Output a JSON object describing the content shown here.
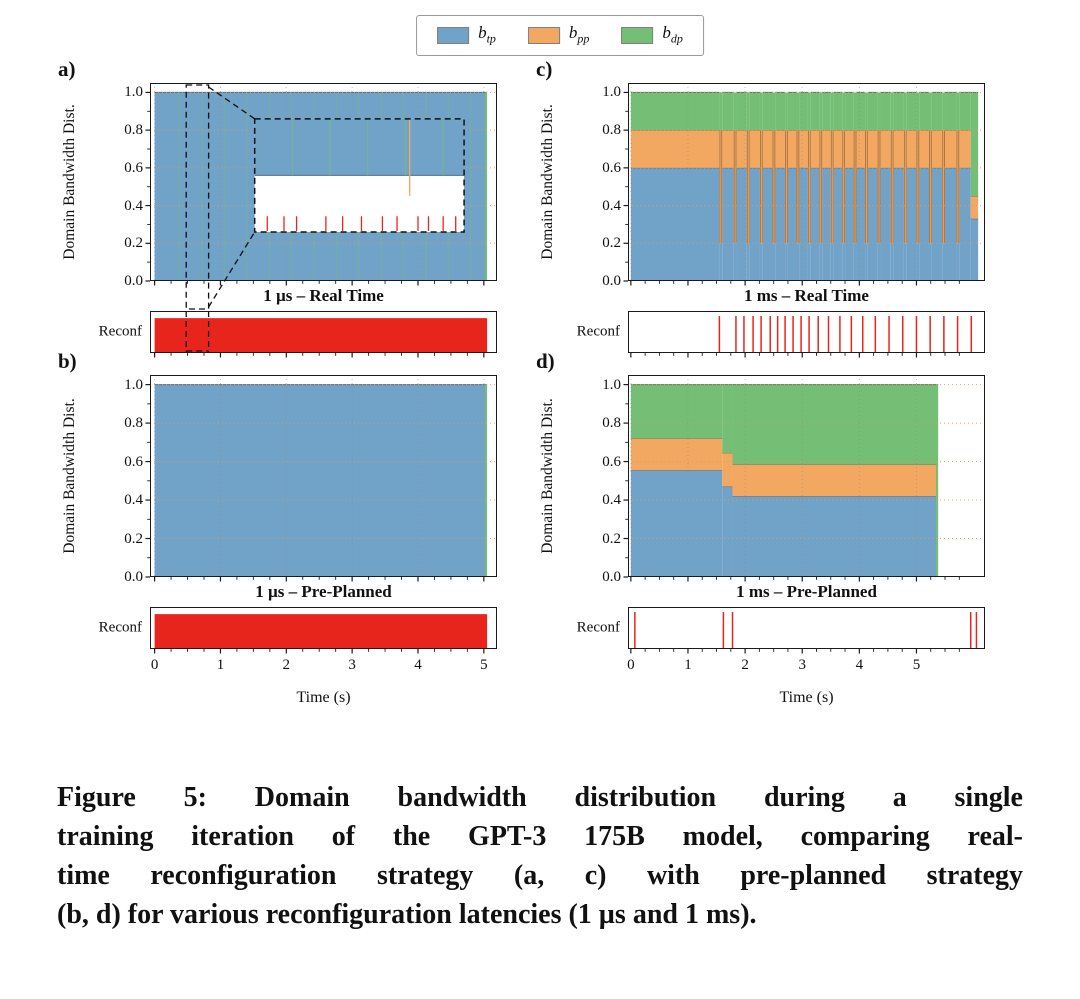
{
  "colors": {
    "tp": "#71a2c8",
    "pp": "#f3a861",
    "dp": "#74bf75",
    "reconf": "#e8251d",
    "grid_h": "#e09a5f",
    "grid_v": "#8c8c8c",
    "axis": "#1a1a1a"
  },
  "legend": {
    "items": [
      {
        "base": "b",
        "sub": "tp",
        "color": "#71a2c8"
      },
      {
        "base": "b",
        "sub": "pp",
        "color": "#f3a861"
      },
      {
        "base": "b",
        "sub": "dp",
        "color": "#74bf75"
      }
    ]
  },
  "caption": {
    "lines": [
      "Figure 5: Domain bandwidth distribution during a single",
      "training iteration of the GPT-3 175B model, comparing real-",
      "time reconfiguration strategy (a, c) with pre-planned strategy",
      "(b, d) for various reconfiguration latencies (1 µs and 1 ms)."
    ]
  },
  "chart_data": [
    {
      "panel_label": "a)",
      "title": "1 µs – Real Time",
      "type": "stacked-area",
      "ylabel": "Domain Bandwidth Dist.",
      "xlabel": "",
      "reconf_label": "Reconf",
      "xlim": [
        -0.07,
        5.2
      ],
      "ylim": [
        0,
        1.05
      ],
      "xticks": [
        0,
        1,
        2,
        3,
        4,
        5
      ],
      "yticks": [
        0,
        0.2,
        0.4,
        0.6,
        0.8,
        1
      ],
      "show_xticklabels": false,
      "segments": [
        {
          "t0": 0,
          "t1": 5.05,
          "tp": 1,
          "pp": 1,
          "dp": 1
        }
      ],
      "events": [],
      "spikes": [
        {
          "c": "dp",
          "w": 1,
          "o": 0.5,
          "y0": 0,
          "y1": 1,
          "times": [
            0.38,
            0.72,
            1.06,
            1.4,
            1.74,
            2.08,
            2.42,
            2.76,
            3.1,
            3.44,
            3.78,
            4.12,
            4.46,
            4.8
          ]
        },
        {
          "c": "pp",
          "w": 2,
          "o": 1,
          "y0": 0.33,
          "y1": 0.82,
          "times": [
            3.85
          ]
        },
        {
          "c": "dp",
          "w": 2,
          "o": 1,
          "y0": 0,
          "y1": 1,
          "times": [
            5.03
          ]
        }
      ],
      "reconf": {
        "type": "solid",
        "t0": 0,
        "t1": 5.05
      },
      "inset": {
        "src_x": [
          0.48,
          0.82
        ],
        "rect": {
          "x0": 1.52,
          "y0": 0.26,
          "x1": 4.7,
          "y1": 0.86
        },
        "fill_frac": 0.5,
        "tick_h": 0.13,
        "red_ticks": [
          0.06,
          0.14,
          0.2,
          0.34,
          0.42,
          0.51,
          0.61,
          0.68,
          0.78,
          0.83,
          0.9,
          0.96
        ],
        "green_ticks": [
          0.18,
          0.36,
          0.54,
          0.72,
          0.9
        ],
        "orange_tick": 0.74
      }
    },
    {
      "panel_label": "b)",
      "title": "1 µs – Pre-Planned",
      "type": "stacked-area",
      "ylabel": "Domain Bandwidth Dist.",
      "xlabel": "Time (s)",
      "reconf_label": "Reconf",
      "xlim": [
        -0.07,
        5.2
      ],
      "ylim": [
        0,
        1.05
      ],
      "xticks": [
        0,
        1,
        2,
        3,
        4,
        5
      ],
      "yticks": [
        0,
        0.2,
        0.4,
        0.6,
        0.8,
        1
      ],
      "show_xticklabels": true,
      "segments": [
        {
          "t0": 0,
          "t1": 5.05,
          "tp": 1,
          "pp": 1,
          "dp": 1
        }
      ],
      "events": [],
      "spikes": [
        {
          "c": "dp",
          "w": 2,
          "o": 1,
          "y0": 0,
          "y1": 1,
          "times": [
            5.03
          ]
        }
      ],
      "reconf": {
        "type": "solid",
        "t0": 0,
        "t1": 5.05
      }
    },
    {
      "panel_label": "c)",
      "title": "1 ms – Real Time",
      "type": "stacked-area",
      "ylabel": "Domain Bandwidth Dist.",
      "xlabel": "",
      "reconf_label": "Reconf",
      "xlim": [
        -0.05,
        6.2
      ],
      "ylim": [
        0,
        1.05
      ],
      "xticks": [
        0,
        1,
        2,
        3,
        4,
        5
      ],
      "yticks": [
        0,
        0.2,
        0.4,
        0.6,
        0.8,
        1
      ],
      "show_xticklabels": false,
      "segments": [
        {
          "t0": 0,
          "t1": 5.95,
          "tp": 0.6,
          "pp": 0.8,
          "dp": 1
        },
        {
          "t0": 5.95,
          "t1": 6.08,
          "tp": 0.33,
          "pp": 0.45,
          "dp": 1
        }
      ],
      "events": [
        {
          "w": 0.05,
          "tp": 0.2,
          "pp": 0.8,
          "dp": 1,
          "times": [
            1.55,
            1.8,
            2.03,
            2.26,
            2.48,
            2.7,
            2.9,
            3.1,
            3.3,
            3.5,
            3.7,
            3.9,
            4.1,
            4.32,
            4.55,
            4.78,
            5.0,
            5.22,
            5.45,
            5.7
          ]
        }
      ],
      "spikes": [],
      "reconf": {
        "type": "ticks",
        "times": [
          1.55,
          1.84,
          1.98,
          2.14,
          2.28,
          2.44,
          2.57,
          2.7,
          2.84,
          2.98,
          3.12,
          3.28,
          3.46,
          3.66,
          3.86,
          4.06,
          4.28,
          4.52,
          4.76,
          5.0,
          5.24,
          5.48,
          5.72,
          5.96
        ]
      }
    },
    {
      "panel_label": "d)",
      "title": "1 ms – Pre-Planned",
      "type": "stacked-area",
      "ylabel": "Domain Bandwidth Dist.",
      "xlabel": "Time (s)",
      "reconf_label": "Reconf",
      "xlim": [
        -0.05,
        6.2
      ],
      "ylim": [
        0,
        1.05
      ],
      "xticks": [
        0,
        1,
        2,
        3,
        4,
        5
      ],
      "yticks": [
        0,
        0.2,
        0.4,
        0.6,
        0.8,
        1
      ],
      "show_xticklabels": true,
      "segments": [
        {
          "t0": 0,
          "t1": 1.6,
          "tp": 0.555,
          "pp": 0.72,
          "dp": 1
        },
        {
          "t0": 1.6,
          "t1": 1.78,
          "tp": 0.47,
          "pp": 0.645,
          "dp": 1
        },
        {
          "t0": 1.78,
          "t1": 5.38,
          "tp": 0.42,
          "pp": 0.585,
          "dp": 1
        }
      ],
      "events": [],
      "spikes": [
        {
          "c": "dp",
          "w": 2,
          "o": 1,
          "y0": 0,
          "y1": 1,
          "times": [
            5.36
          ]
        }
      ],
      "reconf": {
        "type": "ticks",
        "times": [
          0.07,
          1.62,
          1.78,
          5.95,
          6.05
        ]
      }
    }
  ]
}
